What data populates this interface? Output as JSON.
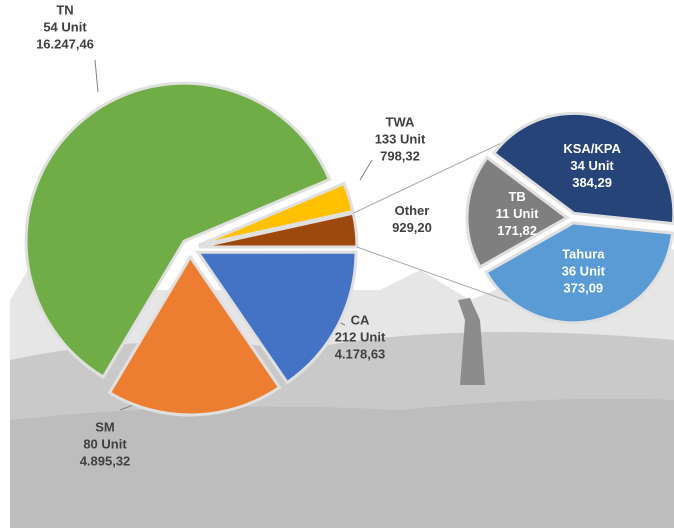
{
  "chart_data": {
    "type": "pie-of-pie",
    "slices": [
      {
        "name": "TWA",
        "units": "133 Unit",
        "value": 798.32,
        "value_label": "798,32",
        "color": "#ffc000"
      },
      {
        "name": "Other",
        "value": 929.2,
        "value_label": "929,20",
        "color": "#9e480e"
      },
      {
        "name": "CA",
        "units": "212 Unit",
        "value": 4178.63,
        "value_label": "4.178,63",
        "color": "#4472c4"
      },
      {
        "name": "SM",
        "units": "80 Unit",
        "value": 4895.32,
        "value_label": "4.895,32",
        "color": "#ed7d31"
      },
      {
        "name": "TN",
        "units": "54 Unit",
        "value": 16247.46,
        "value_label": "16.247,46",
        "color": "#70ad47"
      }
    ],
    "sub_slices": [
      {
        "name": "KSA/KPA",
        "units": "34 Unit",
        "value": 384.29,
        "value_label": "384,29",
        "color": "#264478"
      },
      {
        "name": "Tahura",
        "units": "36 Unit",
        "value": 373.09,
        "value_label": "373,09",
        "color": "#5b9bd5"
      },
      {
        "name": "TB",
        "units": "11 Unit",
        "value": 171.82,
        "value_label": "171,82",
        "color": "#7f7f7f"
      }
    ]
  }
}
